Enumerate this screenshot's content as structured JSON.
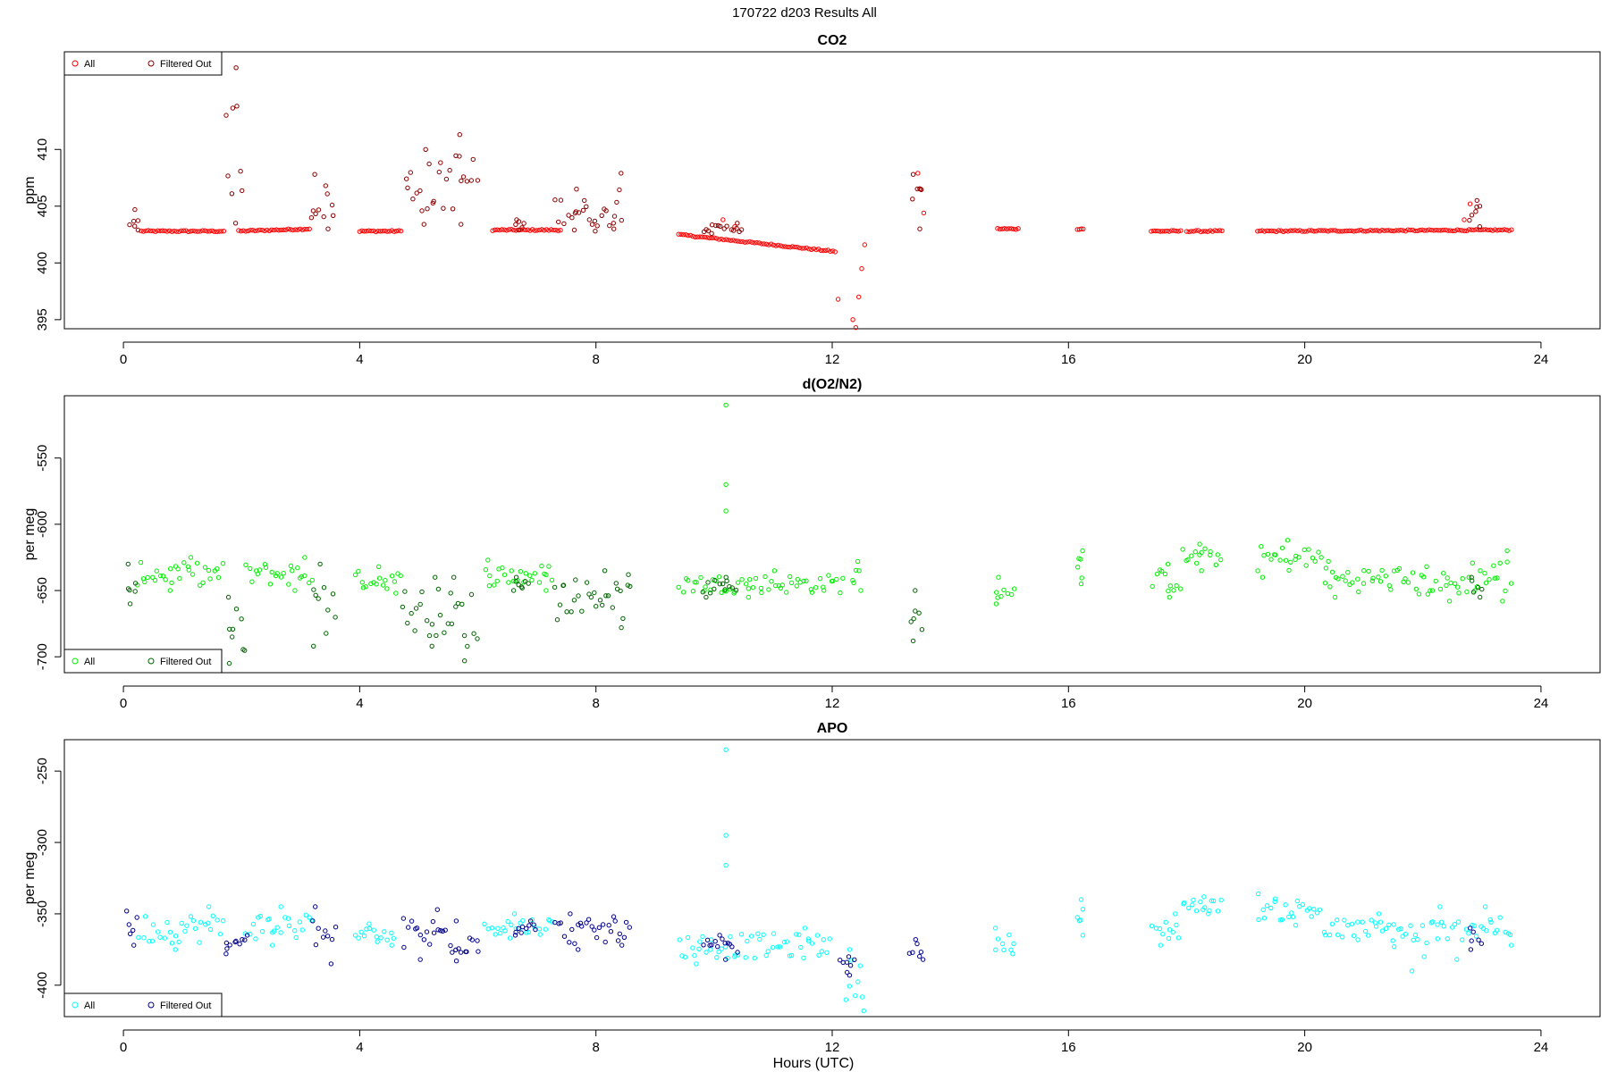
{
  "page": {
    "title": "170722   d203   Results All",
    "x_axis_label": "Hours (UTC)"
  },
  "colors": {
    "co2_all": "#ff0000",
    "co2_filtered": "#8b0000",
    "o2n2_all": "#00ee00",
    "o2n2_filtered": "#006400",
    "apo_all": "#00ffff",
    "apo_filtered": "#00008b"
  },
  "chart_data": [
    {
      "type": "scatter",
      "title": "CO2",
      "xlabel": "",
      "ylabel": "ppm",
      "xlim": [
        -1.0,
        25.0
      ],
      "ylim": [
        394.2,
        418.6
      ],
      "xticks": [
        0,
        4,
        8,
        12,
        16,
        20,
        24
      ],
      "yticks": [
        395,
        400,
        405,
        410
      ],
      "legend": {
        "placement": "top-left",
        "entries": [
          "All",
          "Filtered Out"
        ]
      },
      "series": [
        {
          "name": "All",
          "color": "#ff0000",
          "segments": [
            [
              0.3,
              1.7,
              402.8,
              402.8
            ],
            [
              1.95,
              3.15,
              402.8,
              403.0
            ],
            [
              4.0,
              4.7,
              402.8,
              402.8
            ],
            [
              6.25,
              7.4,
              402.9,
              402.9
            ],
            [
              9.4,
              12.05,
              402.5,
              401.0
            ],
            [
              14.8,
              15.15,
              403.0,
              403.0
            ],
            [
              16.15,
              16.25,
              403.0,
              403.0
            ],
            [
              17.4,
              17.9,
              402.8,
              402.8
            ],
            [
              18.0,
              18.6,
              402.8,
              402.8
            ],
            [
              19.2,
              23.5,
              402.8,
              402.9
            ]
          ],
          "points": [
            [
              12.1,
              396.8
            ],
            [
              12.35,
              395.0
            ],
            [
              12.4,
              394.3
            ],
            [
              12.45,
              397.0
            ],
            [
              12.5,
              399.5
            ],
            [
              12.55,
              401.6
            ],
            [
              13.45,
              407.9
            ],
            [
              13.5,
              406.5
            ],
            [
              13.55,
              404.4
            ],
            [
              10.15,
              403.8
            ],
            [
              10.35,
              403.2
            ],
            [
              22.7,
              403.8
            ],
            [
              22.8,
              405.2
            ]
          ]
        },
        {
          "name": "Filtered Out",
          "color": "#8b0000",
          "clusters": [
            [
              0.1,
              0.25,
              402.9,
              404.7
            ],
            [
              1.7,
              2.05,
              403.5,
              417.2
            ],
            [
              3.15,
              3.6,
              403.0,
              407.8
            ],
            [
              4.75,
              5.5,
              403.4,
              410.0
            ],
            [
              5.5,
              6.0,
              403.4,
              411.3
            ],
            [
              6.6,
              6.8,
              402.9,
              403.8
            ],
            [
              7.3,
              7.8,
              402.9,
              406.5
            ],
            [
              7.8,
              8.3,
              402.8,
              405.5
            ],
            [
              8.3,
              8.45,
              403.0,
              407.9
            ],
            [
              9.8,
              10.5,
              402.6,
              403.5
            ],
            [
              13.35,
              13.55,
              403.0,
              407.8
            ],
            [
              22.75,
              23.0,
              403.2,
              405.5
            ]
          ]
        }
      ]
    },
    {
      "type": "scatter",
      "title": "d(O2/N2)",
      "xlabel": "",
      "ylabel": "per meg",
      "xlim": [
        -1.0,
        25.0
      ],
      "ylim": [
        -712,
        -503
      ],
      "xticks": [
        0,
        4,
        8,
        12,
        16,
        20,
        24
      ],
      "yticks": [
        -700,
        -650,
        -600,
        -550
      ],
      "legend": {
        "placement": "bottom-left",
        "entries": [
          "All",
          "Filtered Out"
        ]
      },
      "series": [
        {
          "name": "All",
          "color": "#00ee00",
          "clusters": [
            [
              0.2,
              1.7,
              -650,
              -625
            ],
            [
              2.05,
              3.2,
              -650,
              -625
            ],
            [
              3.9,
              4.7,
              -652,
              -632
            ],
            [
              6.1,
              7.3,
              -650,
              -627
            ],
            [
              9.4,
              12.2,
              -655,
              -635
            ],
            [
              12.3,
              12.5,
              -650,
              -628
            ],
            [
              14.75,
              15.1,
              -660,
              -640
            ],
            [
              16.15,
              16.25,
              -645,
              -620
            ],
            [
              17.4,
              17.9,
              -655,
              -630
            ],
            [
              17.9,
              18.6,
              -635,
              -615
            ],
            [
              19.2,
              20.3,
              -640,
              -612
            ],
            [
              20.3,
              21.8,
              -655,
              -628
            ],
            [
              21.8,
              22.7,
              -658,
              -632
            ],
            [
              22.7,
              23.5,
              -658,
              -620
            ]
          ],
          "points": [
            [
              10.2,
              -510
            ],
            [
              10.2,
              -570
            ],
            [
              10.2,
              -590
            ]
          ]
        },
        {
          "name": "Filtered Out",
          "color": "#006400",
          "clusters": [
            [
              0.05,
              0.25,
              -660,
              -630
            ],
            [
              1.75,
              2.1,
              -705,
              -655
            ],
            [
              3.2,
              3.6,
              -692,
              -630
            ],
            [
              4.7,
              5.5,
              -692,
              -640
            ],
            [
              5.5,
              6.0,
              -703,
              -640
            ],
            [
              6.6,
              6.9,
              -650,
              -640
            ],
            [
              7.3,
              8.3,
              -672,
              -635
            ],
            [
              8.3,
              8.6,
              -678,
              -638
            ],
            [
              9.8,
              10.4,
              -655,
              -640
            ],
            [
              13.3,
              13.55,
              -688,
              -650
            ],
            [
              22.8,
              23.0,
              -655,
              -640
            ]
          ]
        }
      ]
    },
    {
      "type": "scatter",
      "title": "APO",
      "xlabel": "Hours (UTC)",
      "ylabel": "per meg",
      "xlim": [
        -1.0,
        25.0
      ],
      "ylim": [
        -422,
        -228
      ],
      "xticks": [
        0,
        4,
        8,
        12,
        16,
        20,
        24
      ],
      "yticks": [
        -400,
        -350,
        -300,
        -250
      ],
      "legend": {
        "placement": "bottom-left",
        "entries": [
          "All",
          "Filtered Out"
        ]
      },
      "series": [
        {
          "name": "All",
          "color": "#00ffff",
          "clusters": [
            [
              0.25,
              1.7,
              -375,
              -345
            ],
            [
              2.05,
              3.2,
              -372,
              -345
            ],
            [
              3.9,
              4.6,
              -372,
              -357
            ],
            [
              6.1,
              7.3,
              -367,
              -350
            ],
            [
              9.4,
              12.0,
              -385,
              -360
            ],
            [
              12.2,
              12.55,
              -418,
              -375
            ],
            [
              14.75,
              15.1,
              -378,
              -360
            ],
            [
              16.15,
              16.25,
              -365,
              -340
            ],
            [
              17.4,
              17.9,
              -372,
              -350
            ],
            [
              17.9,
              18.6,
              -350,
              -338
            ],
            [
              19.2,
              20.3,
              -358,
              -336
            ],
            [
              20.3,
              21.8,
              -373,
              -350
            ],
            [
              21.8,
              22.7,
              -390,
              -345
            ],
            [
              22.7,
              23.5,
              -372,
              -345
            ]
          ],
          "points": [
            [
              10.2,
              -235
            ],
            [
              10.2,
              -295
            ],
            [
              10.2,
              -316
            ]
          ]
        },
        {
          "name": "Filtered Out",
          "color": "#00008b",
          "clusters": [
            [
              0.05,
              0.25,
              -372,
              -348
            ],
            [
              1.7,
              2.1,
              -378,
              -365
            ],
            [
              3.2,
              3.6,
              -385,
              -345
            ],
            [
              4.7,
              5.5,
              -382,
              -347
            ],
            [
              5.5,
              6.05,
              -383,
              -355
            ],
            [
              6.6,
              7.0,
              -365,
              -355
            ],
            [
              7.3,
              8.3,
              -375,
              -350
            ],
            [
              8.3,
              8.6,
              -372,
              -352
            ],
            [
              9.8,
              10.4,
              -382,
              -365
            ],
            [
              12.1,
              12.4,
              -393,
              -380
            ],
            [
              13.3,
              13.55,
              -382,
              -368
            ],
            [
              22.8,
              23.0,
              -375,
              -360
            ]
          ]
        }
      ]
    }
  ]
}
